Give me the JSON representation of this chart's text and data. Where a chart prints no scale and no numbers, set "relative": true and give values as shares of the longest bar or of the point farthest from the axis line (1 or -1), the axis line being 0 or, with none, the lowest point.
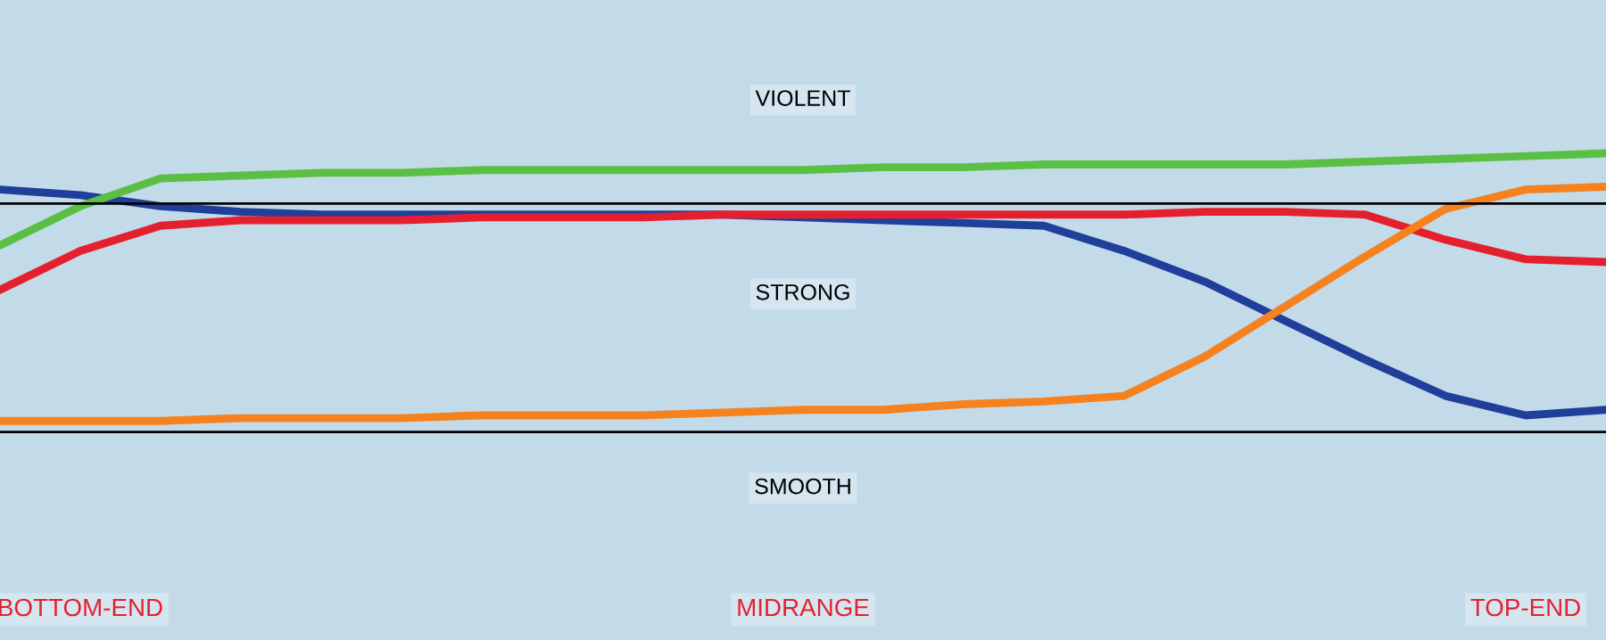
{
  "chart_data": {
    "type": "line",
    "relative": true,
    "categories": [
      null,
      "BOTTOM-END",
      null,
      null,
      null,
      null,
      null,
      null,
      null,
      null,
      "MIDRANGE",
      null,
      null,
      null,
      null,
      null,
      null,
      null,
      null,
      "TOP-END",
      null
    ],
    "series": [
      {
        "color": "#1f3f9a",
        "values": [
          0.87,
          0.85,
          0.81,
          0.79,
          0.78,
          0.78,
          0.78,
          0.78,
          0.78,
          0.78,
          0.77,
          0.76,
          0.75,
          0.74,
          0.65,
          0.54,
          0.4,
          0.26,
          0.13,
          0.06,
          0.08
        ]
      },
      {
        "color": "#5bbf45",
        "values": [
          0.67,
          0.81,
          0.91,
          0.92,
          0.93,
          0.93,
          0.94,
          0.94,
          0.94,
          0.94,
          0.94,
          0.95,
          0.95,
          0.96,
          0.96,
          0.96,
          0.96,
          0.97,
          0.98,
          0.99,
          1.0
        ]
      },
      {
        "color": "#e5202e",
        "values": [
          0.51,
          0.65,
          0.74,
          0.76,
          0.76,
          0.76,
          0.77,
          0.77,
          0.77,
          0.78,
          0.78,
          0.78,
          0.78,
          0.78,
          0.78,
          0.79,
          0.79,
          0.78,
          0.69,
          0.62,
          0.61
        ]
      },
      {
        "color": "#f5821f",
        "values": [
          0.04,
          0.04,
          0.04,
          0.05,
          0.05,
          0.05,
          0.06,
          0.06,
          0.06,
          0.07,
          0.08,
          0.08,
          0.1,
          0.11,
          0.13,
          0.27,
          0.45,
          0.63,
          0.8,
          0.87,
          0.88
        ]
      }
    ],
    "ref_lines": [
      {
        "axis": "y",
        "value": 0.82,
        "color": "#000000"
      },
      {
        "axis": "y",
        "value": 0,
        "color": "#000000"
      }
    ],
    "annotations": [
      "VIOLENT",
      "STRONG",
      "SMOOTH"
    ]
  }
}
